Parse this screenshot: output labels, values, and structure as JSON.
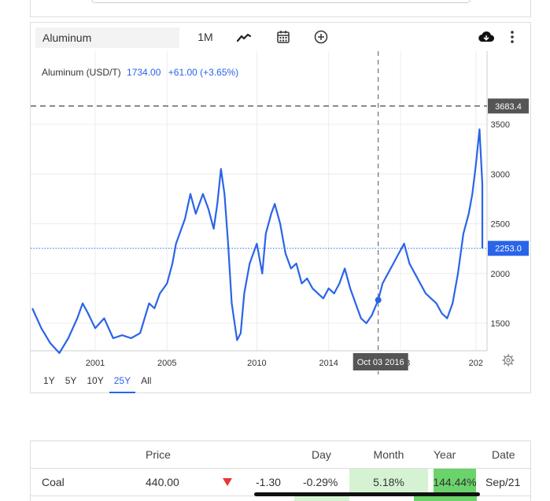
{
  "toolbar": {
    "symbol_value": "Aluminum",
    "timeframe_label": "1M",
    "icons": [
      "line-chart-icon",
      "calendar-icon",
      "plus-circle-icon",
      "cloud-download-icon",
      "more-vertical-icon"
    ]
  },
  "header": {
    "name": "Aluminum (USD/T)",
    "price": "1734.00",
    "change": "+61.00 (+3.65%)",
    "change_color": "#2a64e8"
  },
  "cursor": {
    "date_label": "Oct 03 2016",
    "value": 1734
  },
  "price_tags": {
    "high_label": "3683.4",
    "current_label": "2253.0",
    "high_color": "#555555",
    "current_color": "#2a64e8"
  },
  "range_buttons": [
    {
      "label": "1Y",
      "active": false
    },
    {
      "label": "5Y",
      "active": false
    },
    {
      "label": "10Y",
      "active": false
    },
    {
      "label": "25Y",
      "active": true
    },
    {
      "label": "All",
      "active": false
    }
  ],
  "chart_data": {
    "type": "line",
    "title": "",
    "xlabel": "",
    "ylabel": "",
    "series": [
      {
        "name": "Aluminum (USD/T)",
        "color": "#2a64e8",
        "x": [
          1997.5,
          1998.0,
          1998.5,
          1999.0,
          1999.5,
          2000.0,
          2000.3,
          2000.6,
          2001.0,
          2001.5,
          2002.0,
          2002.5,
          2003.0,
          2003.5,
          2004.0,
          2004.3,
          2004.6,
          2005.0,
          2005.3,
          2005.5,
          2005.8,
          2006.0,
          2006.3,
          2006.6,
          2007.0,
          2007.3,
          2007.6,
          2007.8,
          2008.0,
          2008.2,
          2008.4,
          2008.6,
          2008.9,
          2009.1,
          2009.3,
          2009.6,
          2010.0,
          2010.3,
          2010.5,
          2010.8,
          2011.0,
          2011.3,
          2011.6,
          2011.9,
          2012.2,
          2012.5,
          2012.8,
          2013.1,
          2013.4,
          2013.7,
          2014.0,
          2014.3,
          2014.6,
          2014.9,
          2015.2,
          2015.5,
          2015.8,
          2016.1,
          2016.4,
          2016.76,
          2017.0,
          2017.3,
          2017.6,
          2017.9,
          2018.2,
          2018.5,
          2018.8,
          2019.1,
          2019.4,
          2019.7,
          2020.0,
          2020.3,
          2020.6,
          2020.9,
          2021.2,
          2021.5,
          2021.8,
          2022.0,
          2022.2,
          2022.4,
          2022.6,
          2022.8,
          2023.0
        ],
        "values": [
          1650,
          1450,
          1300,
          1200,
          1350,
          1550,
          1700,
          1600,
          1450,
          1550,
          1350,
          1380,
          1350,
          1400,
          1700,
          1650,
          1800,
          1900,
          2100,
          2300,
          2450,
          2550,
          2800,
          2600,
          2800,
          2650,
          2450,
          2700,
          3050,
          2800,
          2300,
          1700,
          1330,
          1400,
          1800,
          2100,
          2300,
          2000,
          2400,
          2600,
          2700,
          2500,
          2200,
          2050,
          2100,
          1900,
          1950,
          1850,
          1800,
          1750,
          1850,
          1800,
          1900,
          2050,
          1850,
          1700,
          1550,
          1500,
          1580,
          1734,
          1900,
          2000,
          2100,
          2200,
          2300,
          2100,
          2000,
          1900,
          1800,
          1750,
          1700,
          1600,
          1550,
          1700,
          2000,
          2400,
          2600,
          2800,
          3100,
          3450,
          2900,
          2500,
          2253
        ],
        "current_marker_x": 2016.76,
        "current_marker_y": 1734
      }
    ],
    "x_ticks": [
      "2001",
      "2005",
      "2010",
      "2014",
      "2018",
      "202"
    ],
    "y_ticks": [
      "1500",
      "2000",
      "2500",
      "3000",
      "3500"
    ],
    "ylim": [
      1050,
      3800
    ],
    "xlim": [
      1996.0,
      2023.2
    ],
    "reference_lines": [
      {
        "label": "3683.4",
        "style": "dashed"
      },
      {
        "label": "2253.0",
        "style": "dotted"
      }
    ],
    "grid": true
  },
  "table": {
    "headers": [
      "",
      "Price",
      "",
      "Day",
      "Month",
      "Year",
      "Date"
    ],
    "rows": [
      {
        "name": "Coal",
        "price": "440.00",
        "arrow": "down",
        "change": "-1.30",
        "day": "-0.29%",
        "month": "5.18%",
        "year": "144.44%",
        "date": "Sep/21"
      }
    ]
  }
}
